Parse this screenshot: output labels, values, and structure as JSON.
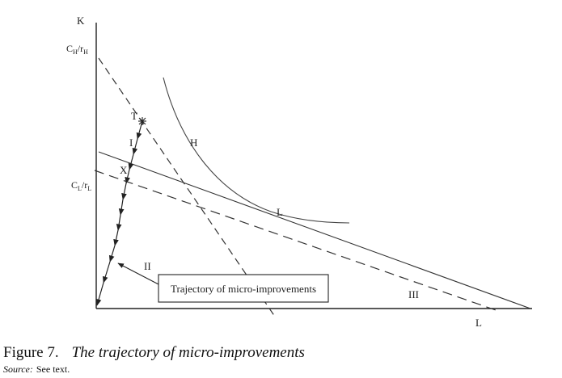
{
  "diagram": {
    "axis_y_label": "K",
    "axis_x_label": "L",
    "ytick_high": {
      "base": "C",
      "sub": "H",
      "mid": "/r",
      "sub2": "H"
    },
    "ytick_low": {
      "base": "C",
      "sub": "L",
      "mid": "/r",
      "sub2": "L"
    },
    "curve_label_H": "H",
    "point_T": "T",
    "point_X": "X",
    "point_L": "L",
    "label_I": "I",
    "label_II": "II",
    "label_III": "III",
    "callout_text": "Trajectory of micro-improvements"
  },
  "caption": {
    "figure_number": "Figure 7.",
    "title": "The trajectory of micro-improvements"
  },
  "source": {
    "label": "Source:",
    "text": "See text."
  }
}
